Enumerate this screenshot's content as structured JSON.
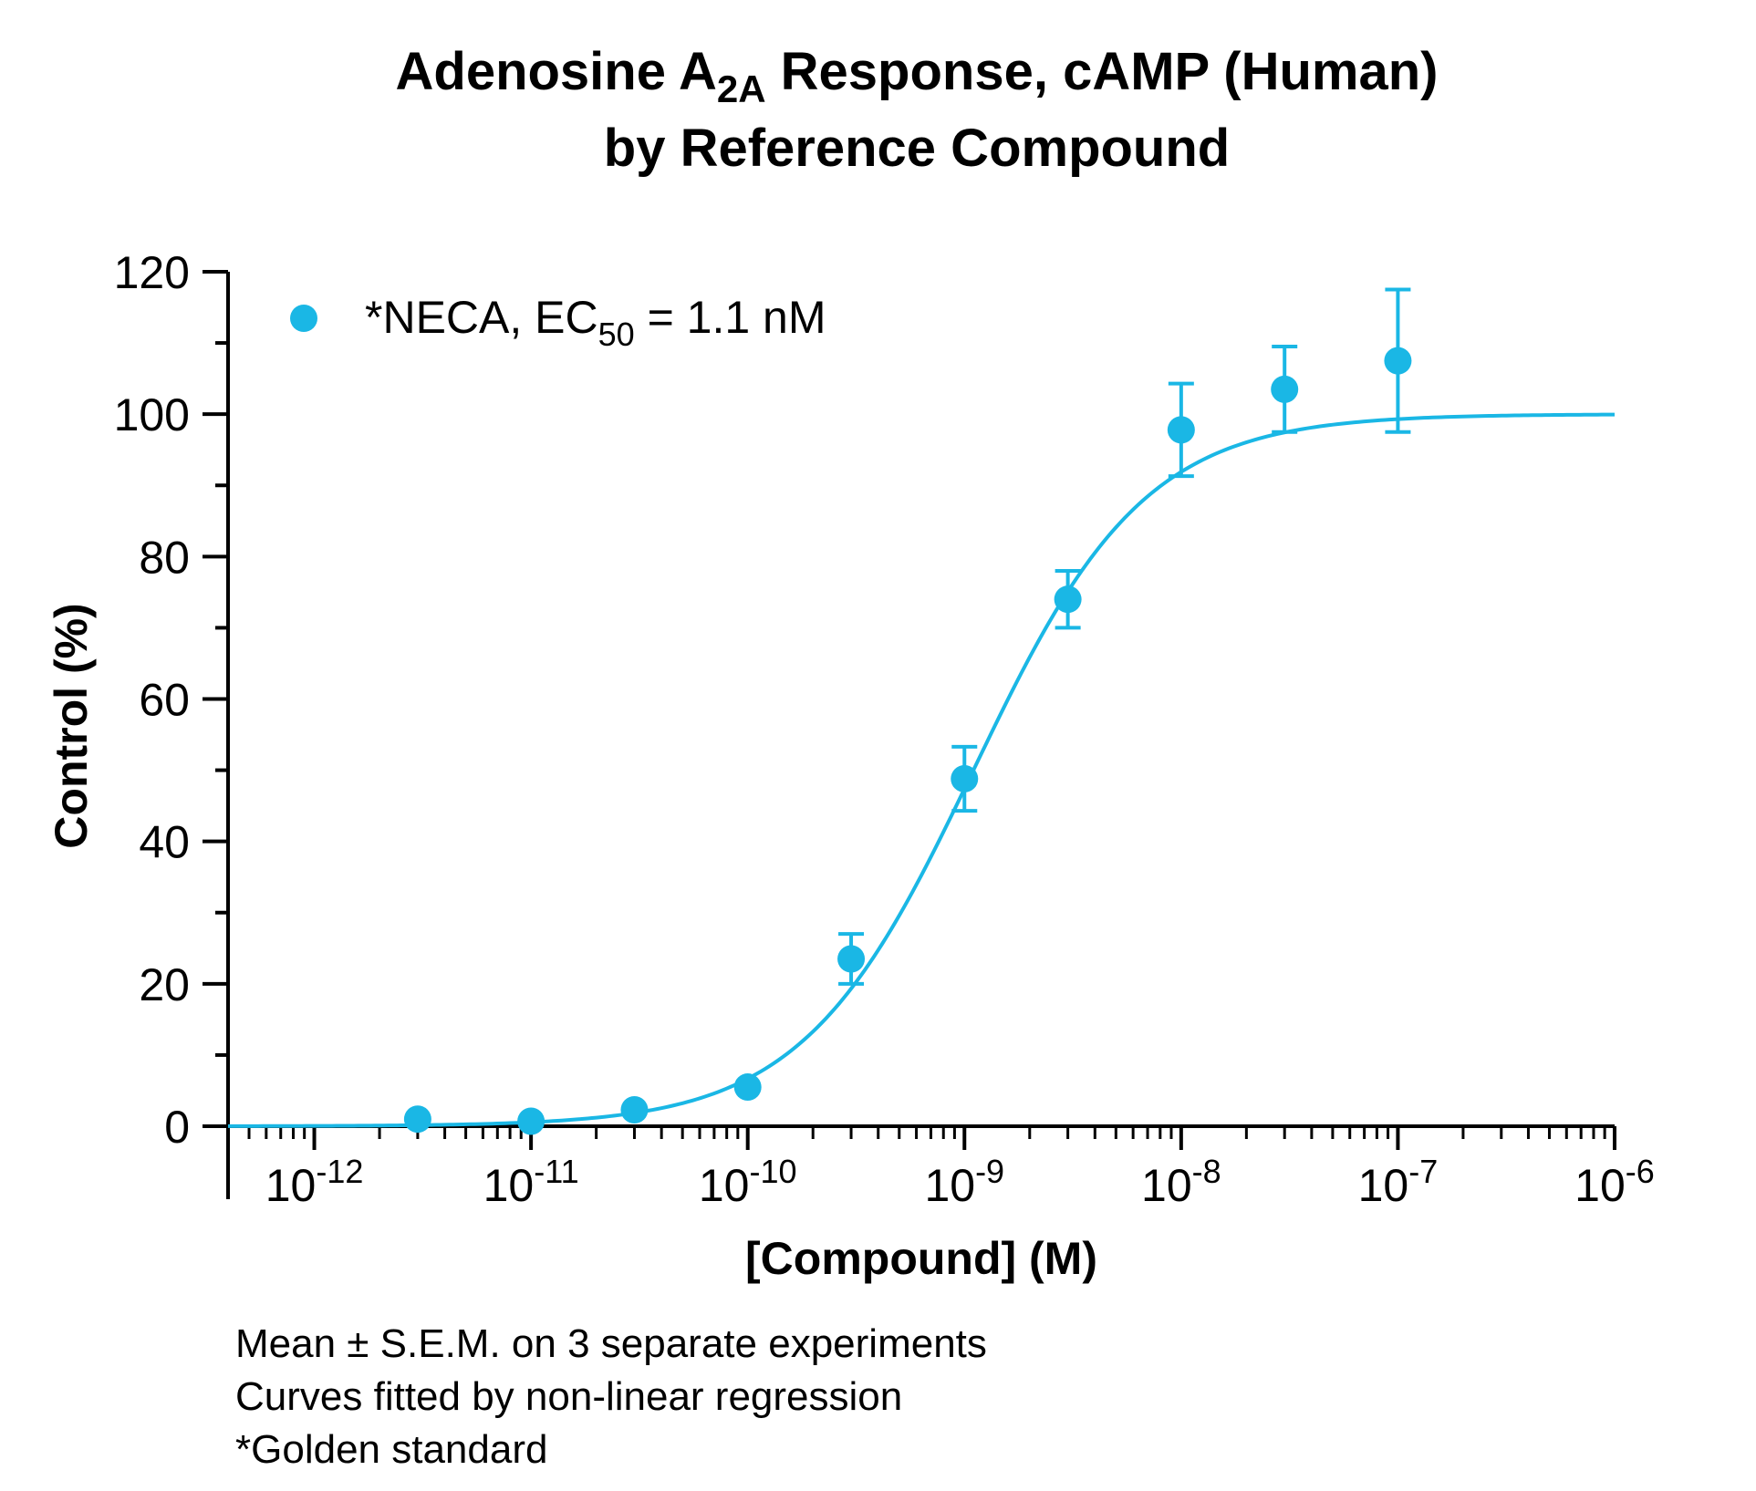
{
  "chart_data": {
    "type": "scatter",
    "title_parts": {
      "prefix": "Adenosine A",
      "subscript": "2A",
      "suffix": " Response, cAMP (Human)",
      "line2": "by Reference Compound"
    },
    "xlabel": "[Compound] (M)",
    "ylabel": "Control (%)",
    "x_scale": "log",
    "xlim": [
      4e-13,
      1e-06
    ],
    "ylim": [
      0,
      120
    ],
    "x_ticks": [
      {
        "base": "10",
        "exp": "-12",
        "value": 1e-12
      },
      {
        "base": "10",
        "exp": "-11",
        "value": 1e-11
      },
      {
        "base": "10",
        "exp": "-10",
        "value": 1e-10
      },
      {
        "base": "10",
        "exp": "-9",
        "value": 1e-09
      },
      {
        "base": "10",
        "exp": "-8",
        "value": 1e-08
      },
      {
        "base": "10",
        "exp": "-7",
        "value": 1e-07
      },
      {
        "base": "10",
        "exp": "-6",
        "value": 1e-06
      }
    ],
    "y_ticks": [
      "0",
      "20",
      "40",
      "60",
      "80",
      "100",
      "120"
    ],
    "y_tick_values": [
      0,
      20,
      40,
      60,
      80,
      100,
      120
    ],
    "grid": false,
    "legend_position": "top-left",
    "series": [
      {
        "legend_parts": {
          "prefix": "*NECA, EC",
          "subscript": "50",
          "suffix": " = 1.1 nM"
        },
        "color": "#1ab7e5",
        "x": [
          3e-12,
          1e-11,
          3e-11,
          1e-10,
          3e-10,
          1e-09,
          3e-09,
          1e-08,
          3e-08,
          1e-07
        ],
        "y": [
          1.0,
          0.7,
          2.3,
          5.5,
          23.5,
          48.8,
          74.0,
          97.8,
          103.5,
          107.5
        ],
        "err_upper": [
          0,
          0,
          0,
          0,
          3.5,
          4.5,
          4.0,
          6.5,
          6.0,
          10.0
        ],
        "err_lower": [
          0,
          0,
          0,
          0,
          3.5,
          4.5,
          4.0,
          6.5,
          6.0,
          10.0
        ],
        "fit": {
          "model": "hill",
          "bottom": 0,
          "top": 100,
          "ec50": 1.1e-09,
          "hill_slope": 1.1
        }
      }
    ]
  },
  "footnotes": [
    "Mean ± S.E.M. on 3 separate experiments",
    "Curves fitted by non-linear regression",
    "*Golden standard"
  ]
}
